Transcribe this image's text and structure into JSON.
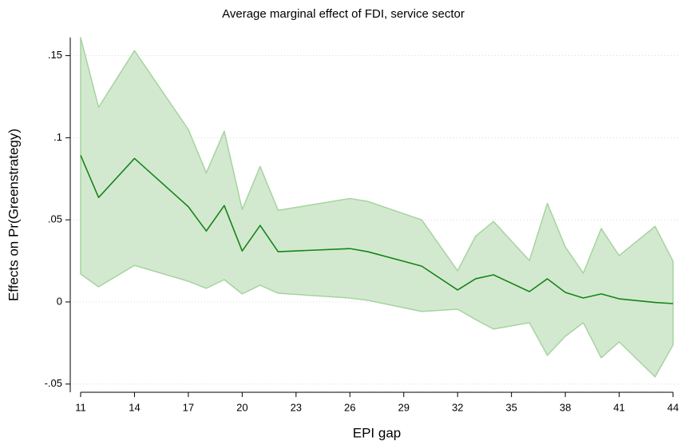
{
  "chart_data": {
    "type": "line_band",
    "title": "Average marginal effect of FDI, service sector",
    "xlabel": "EPI gap",
    "ylabel": "Effects on Pr(Greenstrategy)",
    "x": [
      11,
      12,
      14,
      17,
      18,
      19,
      20,
      21,
      22,
      26,
      27,
      30,
      32,
      33,
      34,
      36,
      37,
      38,
      39,
      40,
      41,
      43,
      44
    ],
    "line": {
      "color": "#16841a",
      "values": [
        0.0893,
        0.0636,
        0.0874,
        0.058,
        0.0432,
        0.0587,
        0.031,
        0.0466,
        0.0306,
        0.0325,
        0.0306,
        0.0218,
        0.0073,
        0.0141,
        0.0165,
        0.0063,
        0.0141,
        0.0058,
        0.0024,
        0.0049,
        0.0019,
        -0.0003,
        -0.001
      ]
    },
    "band": {
      "color": "#d3e9cf",
      "edge": "#a6d3a0",
      "upper": [
        0.161,
        0.1185,
        0.153,
        0.105,
        0.0786,
        0.104,
        0.0563,
        0.0825,
        0.0558,
        0.063,
        0.0612,
        0.05,
        0.019,
        0.04,
        0.049,
        0.0252,
        0.06,
        0.0335,
        0.0175,
        0.0447,
        0.0282,
        0.046,
        0.0248
      ],
      "lower": [
        0.017,
        0.0092,
        0.0223,
        0.0126,
        0.0083,
        0.0136,
        0.0049,
        0.0102,
        0.0053,
        0.0024,
        0.001,
        -0.0058,
        -0.0044,
        -0.0107,
        -0.0165,
        -0.0126,
        -0.0325,
        -0.0209,
        -0.0126,
        -0.034,
        -0.0243,
        -0.0456,
        -0.0262
      ]
    },
    "xlim": [
      11,
      44
    ],
    "xticks": [
      11,
      14,
      17,
      20,
      23,
      26,
      29,
      32,
      35,
      38,
      41,
      44
    ],
    "ylim": [
      -0.055,
      0.161
    ],
    "yticks": [
      {
        "value": -0.05,
        "label": "-.05"
      },
      0,
      {
        "value": 0.05,
        "label": ".05"
      },
      {
        "value": 0.1,
        "label": ".1"
      },
      {
        "value": 0.15,
        "label": ".15"
      }
    ],
    "grid": true
  }
}
